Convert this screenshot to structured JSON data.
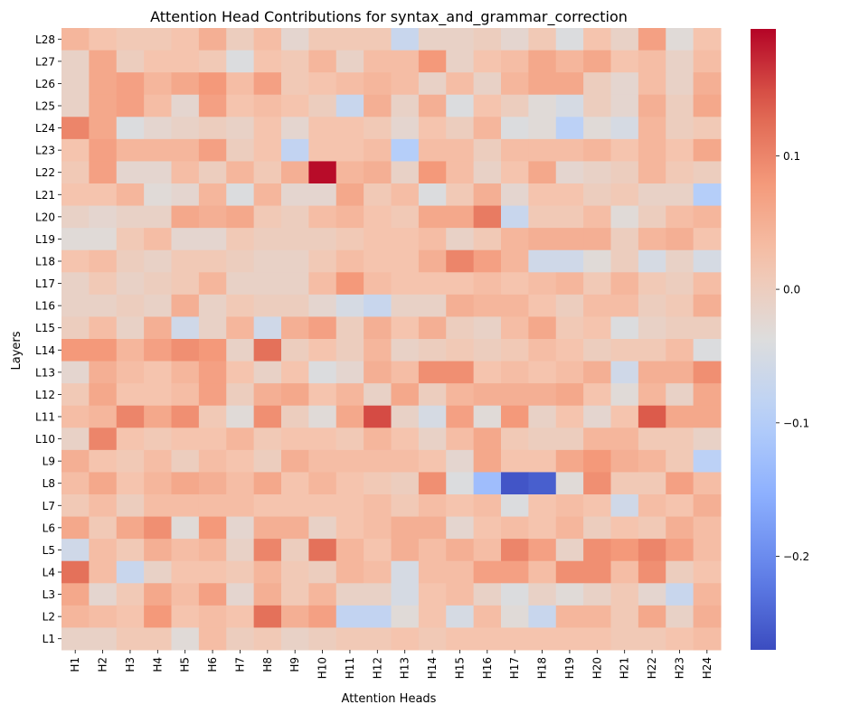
{
  "chart_data": {
    "type": "heatmap",
    "title": "Attention Head Contributions for syntax_and_grammar_correction",
    "xlabel": "Attention Heads",
    "ylabel": "Layers",
    "x_categories": [
      "H1",
      "H2",
      "H3",
      "H4",
      "H5",
      "H6",
      "H7",
      "H8",
      "H9",
      "H10",
      "H11",
      "H12",
      "H13",
      "H14",
      "H15",
      "H16",
      "H17",
      "H18",
      "H19",
      "H20",
      "H21",
      "H22",
      "H23",
      "H24"
    ],
    "y_categories": [
      "L28",
      "L27",
      "L26",
      "L25",
      "L24",
      "L23",
      "L22",
      "L21",
      "L20",
      "L19",
      "L18",
      "L17",
      "L16",
      "L15",
      "L14",
      "L13",
      "L12",
      "L11",
      "L10",
      "L9",
      "L8",
      "L7",
      "L6",
      "L5",
      "L4",
      "L3",
      "L2",
      "L1"
    ],
    "colormap": "coolwarm",
    "vmin": -0.27,
    "vmax": 0.195,
    "colorbar_ticks": [
      0.1,
      0.0,
      -0.1,
      -0.2
    ],
    "colorbar_tick_labels": [
      "0.1",
      "0.0",
      "−0.1",
      "−0.2"
    ],
    "values": [
      [
        0.04,
        0.02,
        0.01,
        0.01,
        0.02,
        0.05,
        0.0,
        0.03,
        -0.02,
        0.01,
        0.01,
        0.01,
        -0.07,
        -0.01,
        -0.01,
        0.0,
        -0.02,
        0.01,
        -0.04,
        0.02,
        -0.01,
        0.07,
        -0.03,
        0.02
      ],
      [
        -0.01,
        0.06,
        0.0,
        0.02,
        0.02,
        0.01,
        -0.04,
        0.02,
        0.01,
        0.04,
        -0.01,
        0.03,
        0.03,
        0.08,
        -0.01,
        0.02,
        0.03,
        0.06,
        0.04,
        0.06,
        0.02,
        0.03,
        -0.01,
        0.03
      ],
      [
        -0.01,
        0.06,
        0.07,
        0.04,
        0.06,
        0.08,
        0.03,
        0.07,
        0.01,
        0.02,
        0.03,
        0.04,
        0.03,
        -0.01,
        0.03,
        -0.01,
        0.04,
        0.06,
        0.06,
        0.0,
        -0.02,
        0.03,
        -0.01,
        0.05
      ],
      [
        -0.01,
        0.06,
        0.07,
        0.03,
        -0.02,
        0.07,
        0.02,
        0.03,
        0.02,
        0.0,
        -0.07,
        0.05,
        -0.01,
        0.05,
        -0.04,
        0.02,
        0.0,
        -0.03,
        -0.05,
        0.0,
        -0.02,
        0.05,
        0.0,
        0.06
      ],
      [
        0.1,
        0.06,
        -0.04,
        -0.02,
        -0.01,
        0.0,
        -0.01,
        0.02,
        -0.02,
        0.02,
        0.02,
        0.01,
        -0.02,
        0.02,
        0.0,
        0.04,
        -0.04,
        -0.03,
        -0.09,
        -0.03,
        -0.05,
        0.04,
        0.0,
        0.01
      ],
      [
        0.02,
        0.07,
        0.04,
        0.04,
        0.04,
        0.07,
        0.0,
        0.02,
        -0.08,
        0.02,
        0.02,
        0.03,
        -0.1,
        0.03,
        0.03,
        0.0,
        0.03,
        0.03,
        0.03,
        0.04,
        0.02,
        0.04,
        0.02,
        0.06
      ],
      [
        0.01,
        0.07,
        -0.02,
        -0.02,
        0.03,
        0.0,
        0.04,
        0.01,
        0.05,
        0.19,
        0.04,
        0.05,
        -0.01,
        0.08,
        0.03,
        -0.01,
        0.02,
        0.06,
        -0.02,
        -0.01,
        0.0,
        0.04,
        0.01,
        0.0
      ],
      [
        0.02,
        0.02,
        0.04,
        -0.03,
        -0.02,
        0.04,
        -0.04,
        0.04,
        -0.02,
        -0.02,
        0.06,
        0.01,
        0.03,
        -0.04,
        0.01,
        0.05,
        -0.02,
        0.02,
        0.02,
        0.0,
        0.01,
        -0.01,
        -0.01,
        -0.1
      ],
      [
        -0.01,
        -0.02,
        -0.01,
        -0.01,
        0.06,
        0.05,
        0.06,
        0.01,
        0.0,
        0.03,
        0.04,
        0.02,
        0.01,
        0.06,
        0.06,
        0.11,
        -0.07,
        0.01,
        0.01,
        0.03,
        -0.03,
        0.0,
        0.03,
        0.04
      ],
      [
        -0.03,
        -0.03,
        0.01,
        0.03,
        -0.02,
        -0.02,
        0.01,
        0.0,
        0.0,
        0.0,
        0.01,
        0.02,
        0.02,
        0.03,
        -0.01,
        0.01,
        0.04,
        0.05,
        0.05,
        0.05,
        0.0,
        0.04,
        0.05,
        0.02
      ],
      [
        0.02,
        0.03,
        0.0,
        -0.01,
        0.01,
        0.01,
        0.0,
        -0.01,
        -0.01,
        0.01,
        0.03,
        0.02,
        0.02,
        0.05,
        0.1,
        0.07,
        0.04,
        -0.06,
        -0.06,
        -0.03,
        0.0,
        -0.05,
        -0.01,
        -0.05
      ],
      [
        -0.01,
        0.01,
        -0.01,
        0.0,
        0.01,
        0.04,
        -0.01,
        -0.01,
        -0.01,
        0.03,
        0.08,
        0.03,
        0.02,
        0.02,
        0.02,
        0.03,
        0.02,
        0.03,
        0.04,
        0.01,
        0.04,
        0.01,
        0.0,
        0.03
      ],
      [
        -0.01,
        -0.01,
        0.0,
        -0.01,
        0.05,
        -0.01,
        0.01,
        0.0,
        0.0,
        -0.02,
        -0.05,
        -0.07,
        -0.01,
        -0.01,
        0.05,
        0.04,
        0.04,
        0.02,
        0.0,
        0.03,
        0.03,
        0.0,
        0.01,
        0.05
      ],
      [
        0.0,
        0.03,
        -0.01,
        0.05,
        -0.06,
        -0.01,
        0.04,
        -0.06,
        0.05,
        0.07,
        0.0,
        0.05,
        0.02,
        0.05,
        0.0,
        -0.01,
        0.03,
        0.06,
        0.01,
        0.02,
        -0.04,
        -0.01,
        0.0,
        0.0
      ],
      [
        0.08,
        0.08,
        0.04,
        0.07,
        0.09,
        0.08,
        -0.01,
        0.12,
        0.0,
        0.02,
        0.0,
        0.04,
        -0.01,
        0.0,
        0.01,
        0.0,
        0.01,
        0.03,
        0.02,
        0.0,
        0.01,
        0.01,
        0.03,
        -0.04
      ],
      [
        -0.02,
        0.05,
        0.03,
        0.02,
        0.04,
        0.07,
        0.02,
        -0.01,
        0.02,
        -0.04,
        -0.02,
        0.05,
        0.03,
        0.09,
        0.09,
        0.02,
        0.03,
        0.02,
        0.03,
        0.05,
        -0.06,
        0.05,
        0.05,
        0.09
      ],
      [
        0.01,
        0.06,
        0.02,
        0.02,
        0.03,
        0.07,
        0.0,
        0.05,
        0.06,
        0.02,
        0.04,
        -0.01,
        0.06,
        0.0,
        0.04,
        0.05,
        0.05,
        0.05,
        0.06,
        0.02,
        -0.03,
        0.04,
        -0.01,
        0.06
      ],
      [
        0.03,
        0.04,
        0.1,
        0.06,
        0.09,
        0.01,
        -0.03,
        0.09,
        0.0,
        -0.03,
        0.06,
        0.15,
        -0.01,
        -0.05,
        0.07,
        -0.03,
        0.08,
        -0.01,
        0.02,
        -0.02,
        0.02,
        0.14,
        0.06,
        0.06
      ],
      [
        -0.01,
        0.1,
        0.02,
        0.01,
        0.02,
        0.02,
        0.04,
        0.01,
        0.02,
        0.02,
        0.01,
        0.04,
        0.02,
        -0.01,
        0.03,
        0.06,
        0.01,
        0.0,
        0.0,
        0.04,
        0.04,
        0.01,
        0.01,
        -0.01
      ],
      [
        0.05,
        0.02,
        0.01,
        0.03,
        0.0,
        0.03,
        0.02,
        0.0,
        0.05,
        0.03,
        0.03,
        0.03,
        0.03,
        0.02,
        -0.02,
        0.06,
        0.02,
        0.02,
        0.06,
        0.08,
        0.05,
        0.04,
        0.01,
        -0.09
      ],
      [
        0.03,
        0.06,
        0.02,
        0.04,
        0.06,
        0.05,
        0.03,
        0.06,
        0.02,
        0.04,
        0.02,
        0.01,
        0.0,
        0.09,
        -0.04,
        -0.13,
        -0.26,
        -0.25,
        -0.03,
        0.09,
        0.01,
        0.01,
        0.07,
        0.03
      ],
      [
        0.01,
        0.03,
        0.0,
        0.03,
        0.03,
        0.03,
        0.03,
        0.02,
        0.02,
        0.02,
        0.02,
        0.03,
        0.01,
        0.03,
        0.02,
        0.03,
        -0.04,
        0.02,
        0.03,
        0.02,
        -0.06,
        0.03,
        0.02,
        0.05
      ],
      [
        0.06,
        0.01,
        0.06,
        0.09,
        -0.03,
        0.08,
        -0.02,
        0.05,
        0.05,
        -0.01,
        0.02,
        0.03,
        0.05,
        0.05,
        -0.02,
        0.02,
        0.03,
        0.02,
        0.04,
        0.0,
        0.02,
        0.01,
        0.05,
        0.03
      ],
      [
        -0.06,
        0.03,
        0.01,
        0.05,
        0.03,
        0.04,
        -0.01,
        0.1,
        0.0,
        0.12,
        0.04,
        0.02,
        0.05,
        0.03,
        0.05,
        0.03,
        0.1,
        0.07,
        -0.01,
        0.09,
        0.08,
        0.1,
        0.07,
        0.03
      ],
      [
        0.12,
        0.03,
        -0.07,
        -0.01,
        0.02,
        0.02,
        0.01,
        0.04,
        0.01,
        0.0,
        0.04,
        0.03,
        -0.05,
        0.03,
        0.03,
        0.07,
        0.07,
        0.03,
        0.09,
        0.09,
        0.03,
        0.09,
        0.0,
        0.02
      ],
      [
        0.06,
        -0.02,
        0.01,
        0.06,
        0.03,
        0.07,
        -0.02,
        0.05,
        0.01,
        0.04,
        -0.01,
        -0.01,
        -0.05,
        0.02,
        0.03,
        -0.01,
        -0.04,
        -0.01,
        -0.03,
        -0.01,
        0.01,
        -0.02,
        -0.07,
        0.04
      ],
      [
        0.04,
        0.03,
        0.02,
        0.08,
        0.02,
        0.03,
        0.02,
        0.12,
        0.05,
        0.07,
        -0.08,
        -0.08,
        -0.03,
        0.02,
        -0.05,
        0.03,
        -0.03,
        -0.07,
        0.04,
        0.04,
        0.01,
        0.06,
        -0.01,
        0.05
      ],
      [
        -0.01,
        -0.01,
        0.01,
        0.01,
        -0.03,
        0.03,
        0.0,
        0.01,
        -0.01,
        0.0,
        0.01,
        0.01,
        0.02,
        0.01,
        0.02,
        0.02,
        0.02,
        0.02,
        0.02,
        0.02,
        0.01,
        0.01,
        0.02,
        0.03
      ]
    ]
  }
}
